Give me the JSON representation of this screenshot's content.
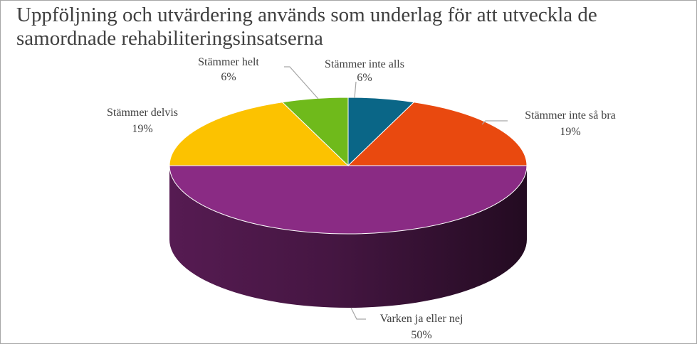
{
  "chart_data": {
    "type": "pie",
    "title": "Uppföljning och utvärdering används som underlag för att utveckla de samordnade rehabiliteringsinsatserna",
    "categories": [
      "Stämmer inte alls",
      "Stämmer inte så bra",
      "Varken ja eller nej",
      "Stämmer delvis",
      "Stämmer helt"
    ],
    "values": [
      6,
      19,
      50,
      19,
      6
    ],
    "value_labels": [
      "6%",
      "19%",
      "50%",
      "19%",
      "6%"
    ],
    "colors": [
      "#0a6687",
      "#e9490f",
      "#8a2b84",
      "#fcc200",
      "#6fba1b"
    ],
    "legend": "none",
    "style": "3d"
  }
}
